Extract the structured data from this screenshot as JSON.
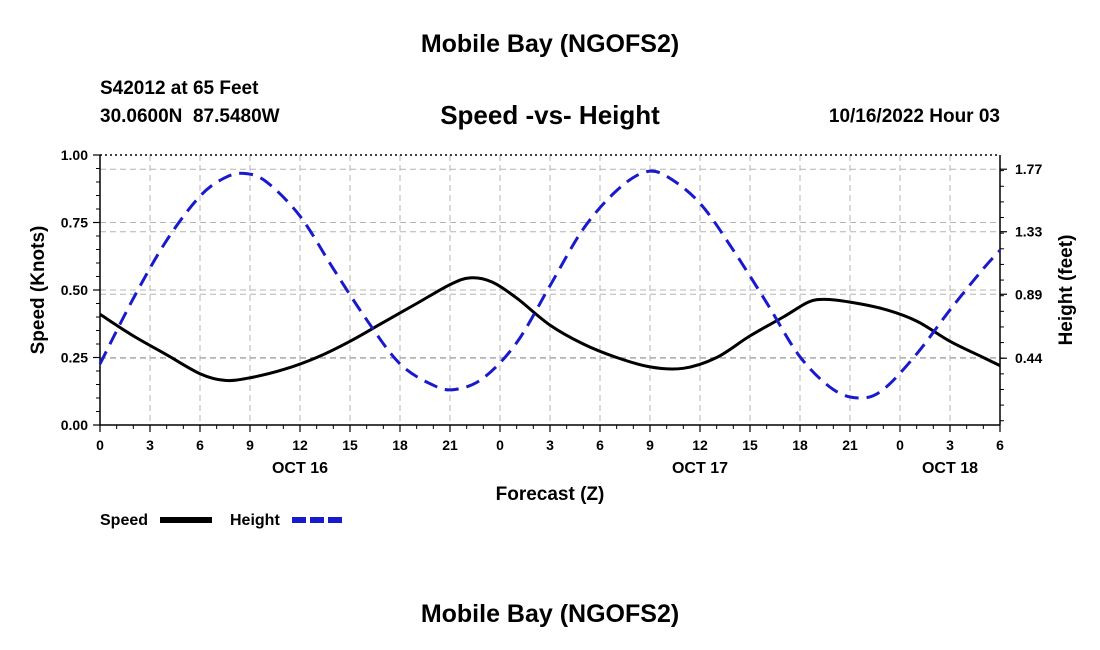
{
  "header": {
    "title": "Mobile Bay (NGOFS2)",
    "station": "S42012 at 65 Feet",
    "coords": "30.0600N  87.5480W",
    "subtitle": "Speed -vs- Height",
    "datetime": "10/16/2022 Hour 03",
    "footer_title": "Mobile Bay (NGOFS2)"
  },
  "colors": {
    "speed": "#000000",
    "height": "#1a1acd",
    "grid": "#b4b4b4"
  },
  "chart_data": {
    "type": "line",
    "title": "Speed -vs- Height",
    "xlabel": "Forecast (Z)",
    "ylabel": "Speed (Knots)",
    "y2label": "Height (feet)",
    "xlim": [
      0,
      54
    ],
    "ylim": [
      0,
      1.0
    ],
    "y2lim": [
      -0.03,
      1.87
    ],
    "grid": true,
    "x_ticks": [
      0,
      3,
      6,
      9,
      12,
      15,
      18,
      21,
      24,
      27,
      30,
      33,
      36,
      39,
      42,
      45,
      48,
      51,
      54
    ],
    "x_tick_labels": [
      "0",
      "3",
      "6",
      "9",
      "12",
      "15",
      "18",
      "21",
      "0",
      "3",
      "6",
      "9",
      "12",
      "15",
      "18",
      "21",
      "0",
      "3",
      "6"
    ],
    "day_labels": [
      {
        "x": 12,
        "label": "OCT 16"
      },
      {
        "x": 36,
        "label": "OCT 17"
      },
      {
        "x": 51,
        "label": "OCT 18"
      }
    ],
    "y_ticks": [
      0,
      0.25,
      0.5,
      0.75,
      1.0
    ],
    "y_tick_labels": [
      "0.00",
      "0.25",
      "0.50",
      "0.75",
      "1.00"
    ],
    "y2_ticks": [
      0.44,
      0.89,
      1.33,
      1.77
    ],
    "y2_tick_labels": [
      "0.44",
      "0.89",
      "1.33",
      "1.77"
    ],
    "legend": [
      {
        "name": "Speed",
        "style": "solid"
      },
      {
        "name": "Height",
        "style": "dashed"
      }
    ],
    "series": [
      {
        "name": "Speed",
        "axis": "left",
        "x": [
          0,
          2,
          4,
          6,
          7.5,
          9,
          11,
          13,
          15,
          17,
          19,
          21,
          22.2,
          23.5,
          25,
          27,
          29,
          31,
          33,
          35,
          37,
          39,
          41,
          42.5,
          43.5,
          45,
          47,
          49,
          51,
          53,
          54
        ],
        "values": [
          0.41,
          0.33,
          0.26,
          0.19,
          0.165,
          0.175,
          0.205,
          0.25,
          0.31,
          0.38,
          0.45,
          0.52,
          0.545,
          0.53,
          0.47,
          0.37,
          0.3,
          0.25,
          0.215,
          0.21,
          0.25,
          0.33,
          0.4,
          0.455,
          0.465,
          0.455,
          0.43,
          0.385,
          0.31,
          0.25,
          0.22
        ]
      },
      {
        "name": "Height",
        "axis": "right",
        "x": [
          0,
          2,
          4,
          6,
          7.5,
          8.7,
          10,
          12,
          14,
          16,
          18,
          20,
          21.3,
          23,
          25,
          27,
          29,
          31,
          32.7,
          34,
          36,
          38,
          40,
          42,
          44,
          45.6,
          47,
          49,
          51,
          53,
          54
        ],
        "values": [
          0.4,
          0.86,
          1.27,
          1.58,
          1.71,
          1.74,
          1.68,
          1.44,
          1.07,
          0.71,
          0.4,
          0.25,
          0.22,
          0.3,
          0.55,
          0.95,
          1.35,
          1.62,
          1.75,
          1.72,
          1.53,
          1.2,
          0.83,
          0.45,
          0.22,
          0.16,
          0.22,
          0.47,
          0.78,
          1.07,
          1.2
        ]
      }
    ]
  }
}
